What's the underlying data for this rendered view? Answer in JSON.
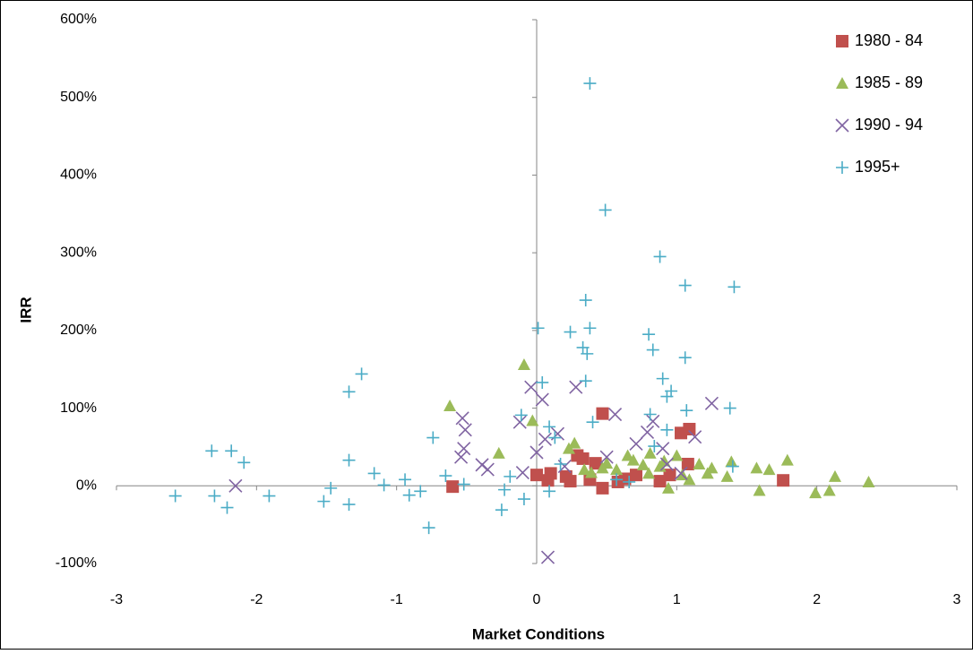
{
  "chart_data": {
    "type": "scatter",
    "x_label": "Market Conditions",
    "y_label": "IRR",
    "xlim": [
      -3,
      3
    ],
    "xticks": [
      -3,
      -2,
      -1,
      0,
      1,
      2,
      3
    ],
    "ylim": [
      -100,
      600
    ],
    "yticks": [
      {
        "value": -100,
        "label": "-100%"
      },
      {
        "value": 0,
        "label": "0%"
      },
      {
        "value": 100,
        "label": "100%"
      },
      {
        "value": 200,
        "label": "200%"
      },
      {
        "value": 300,
        "label": "300%"
      },
      {
        "value": 400,
        "label": "400%"
      },
      {
        "value": 500,
        "label": "500%"
      },
      {
        "value": 600,
        "label": "600%"
      }
    ],
    "grid": false,
    "legend": "top-right",
    "series": [
      {
        "name": "1980 - 84",
        "color": "#c0504d",
        "marker": "square",
        "x": [
          0.0,
          0.08,
          0.24,
          0.21,
          0.29,
          0.33,
          0.42,
          0.47,
          0.47,
          0.58,
          0.63,
          0.71,
          0.88,
          0.95,
          1.03,
          1.09,
          1.08,
          1.76,
          -0.6,
          0.1,
          0.38
        ],
        "values": [
          14,
          7,
          6,
          12,
          39,
          35,
          29,
          93,
          -3,
          5,
          9,
          14,
          6,
          14,
          68,
          73,
          28,
          7,
          -1,
          16,
          8
        ]
      },
      {
        "name": "1985 - 89",
        "color": "#9bbb59",
        "marker": "triangle",
        "x": [
          -0.09,
          -0.62,
          -0.27,
          -0.03,
          0.23,
          0.27,
          0.39,
          0.5,
          0.57,
          0.65,
          0.69,
          0.76,
          0.81,
          0.88,
          0.91,
          0.94,
          1.0,
          1.04,
          1.09,
          1.16,
          1.22,
          1.36,
          1.39,
          1.57,
          1.59,
          1.66,
          1.79,
          1.99,
          2.09,
          2.13,
          2.37,
          0.47,
          0.34,
          0.8,
          1.25
        ],
        "values": [
          156,
          103,
          42,
          84,
          48,
          55,
          17,
          29,
          21,
          39,
          33,
          27,
          42,
          25,
          32,
          -3,
          39,
          14,
          8,
          28,
          16,
          12,
          31,
          23,
          -6,
          21,
          33,
          -9,
          -6,
          12,
          5,
          23,
          21,
          16,
          23
        ]
      },
      {
        "name": "1990 - 94",
        "color": "#8064a2",
        "marker": "x",
        "x": [
          -2.15,
          -0.53,
          -0.51,
          -0.52,
          -0.54,
          -0.39,
          -0.35,
          -0.12,
          -0.1,
          -0.04,
          0.04,
          0.0,
          0.06,
          0.15,
          0.28,
          0.08,
          0.56,
          0.5,
          0.71,
          0.79,
          0.83,
          0.9,
          0.93,
          1.03,
          1.13,
          1.25,
          0.2
        ],
        "values": [
          0,
          87,
          72,
          48,
          37,
          27,
          21,
          82,
          17,
          127,
          111,
          43,
          60,
          67,
          127,
          -92,
          92,
          37,
          54,
          69,
          83,
          48,
          28,
          16,
          63,
          106,
          25
        ]
      },
      {
        "name": "1995+",
        "color": "#4bacc6",
        "marker": "plus",
        "x": [
          -2.58,
          -2.32,
          -2.3,
          -2.21,
          -2.18,
          -2.09,
          -1.91,
          -1.52,
          -1.47,
          -1.34,
          -1.34,
          -1.34,
          -1.25,
          -1.16,
          -1.09,
          -0.94,
          -0.91,
          -0.83,
          -0.77,
          -0.74,
          -0.65,
          -0.52,
          -0.25,
          -0.23,
          -0.19,
          -0.11,
          -0.09,
          0.01,
          0.04,
          0.09,
          0.09,
          0.13,
          0.17,
          0.24,
          0.33,
          0.35,
          0.38,
          0.36,
          0.35,
          0.38,
          0.49,
          0.4,
          0.57,
          0.66,
          0.8,
          0.83,
          0.81,
          0.88,
          0.9,
          0.93,
          0.96,
          1.06,
          1.06,
          1.07,
          1.41,
          1.38,
          1.4,
          0.84,
          0.93
        ],
        "values": [
          -13,
          45,
          -13,
          -28,
          45,
          30,
          -13,
          -20,
          -3,
          121,
          33,
          -24,
          144,
          16,
          1,
          8,
          -12,
          -7,
          -54,
          62,
          13,
          2,
          -31,
          -5,
          12,
          91,
          -17,
          203,
          133,
          76,
          -7,
          62,
          28,
          198,
          178,
          239,
          203,
          170,
          135,
          518,
          355,
          82,
          8,
          5,
          195,
          175,
          92,
          295,
          138,
          115,
          122,
          258,
          165,
          97,
          256,
          100,
          25,
          51,
          72
        ]
      }
    ]
  }
}
